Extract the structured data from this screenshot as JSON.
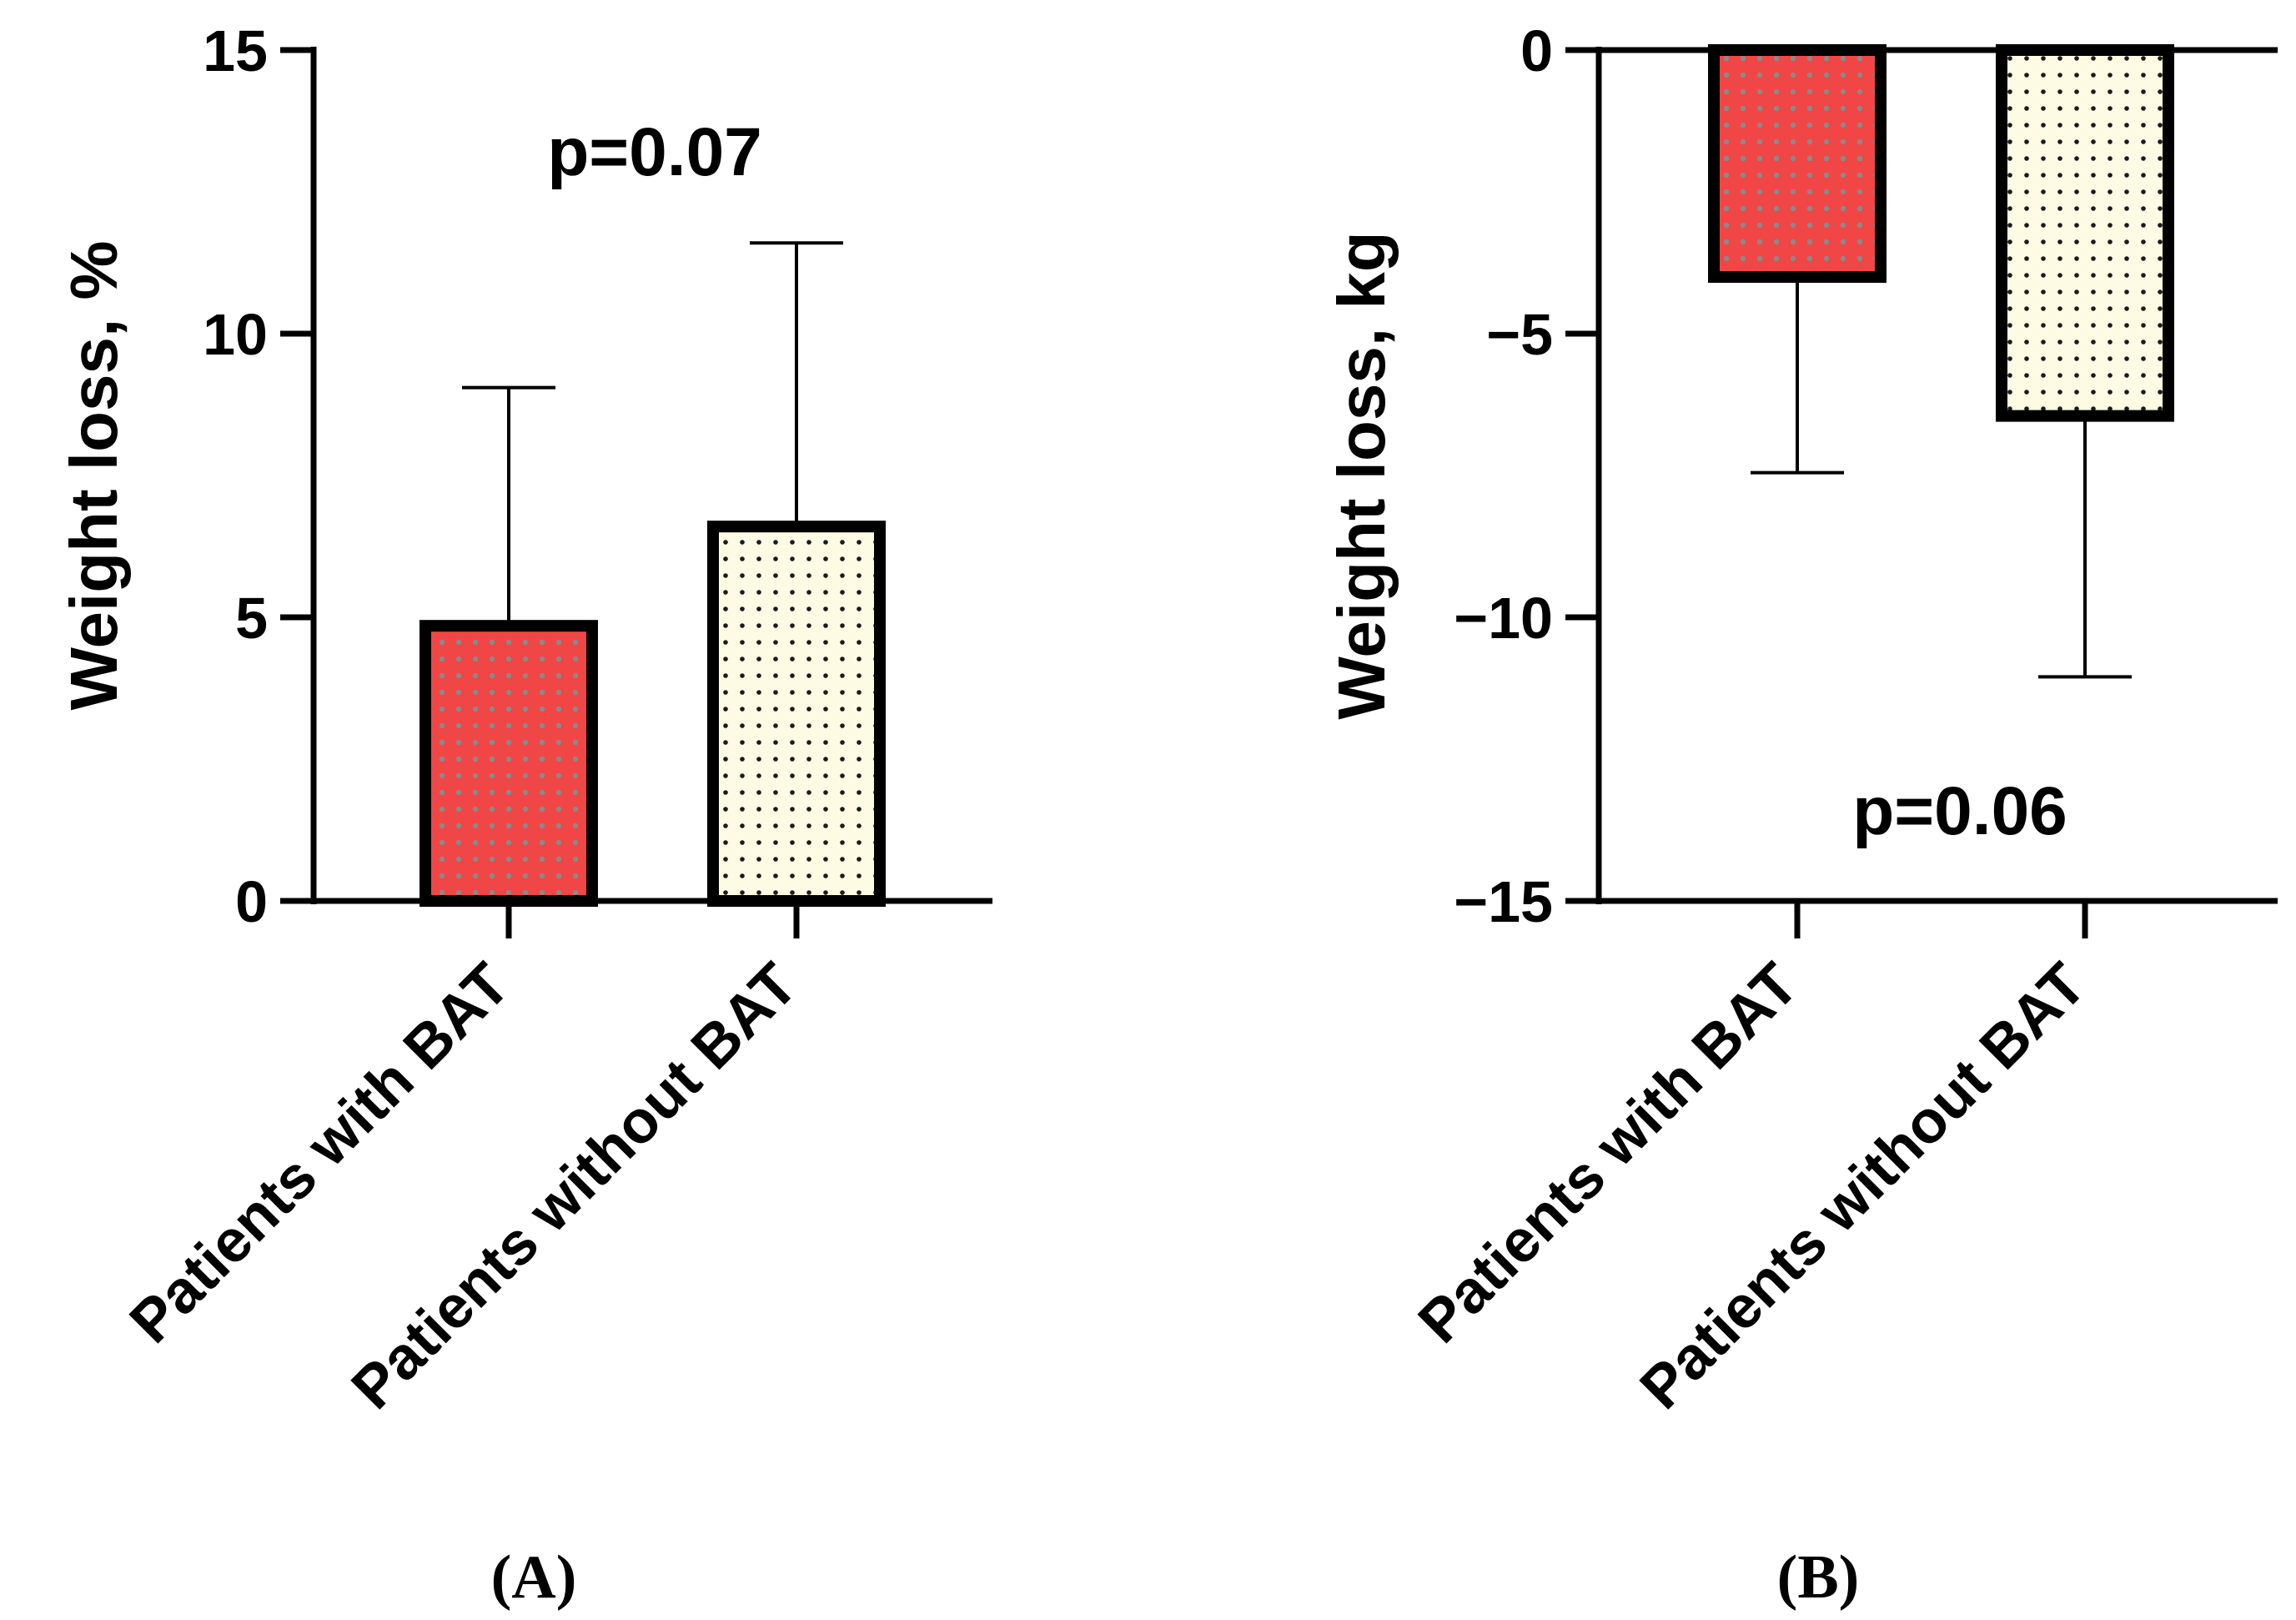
{
  "chart_data": [
    {
      "type": "bar",
      "panel_label": "(A)",
      "categories": [
        "Patients with BAT",
        "Patients without BAT"
      ],
      "series": [
        {
          "name": "Weight loss, %",
          "values": [
            4.85,
            6.6
          ],
          "error_upper": [
            4.2,
            5.0
          ],
          "colors": [
            "#f04646",
            "#fdfbe3"
          ],
          "dot_colors": [
            "#8a8a8a",
            "#1a1a1a"
          ]
        }
      ],
      "ylabel": "Weight loss, %",
      "xlabel": "",
      "ylim": [
        0,
        15
      ],
      "yticks": [
        0,
        5,
        10,
        15
      ],
      "ytick_labels": [
        "0",
        "5",
        "10",
        "15"
      ],
      "annotation": "p=0.07",
      "grid": false
    },
    {
      "type": "bar",
      "panel_label": "(B)",
      "categories": [
        "Patients with BAT",
        "Patients without BAT"
      ],
      "series": [
        {
          "name": "Weight loss, kg",
          "values": [
            -4.0,
            -6.45
          ],
          "error_lower": [
            3.45,
            4.6
          ],
          "colors": [
            "#f04646",
            "#fdfbe3"
          ],
          "dot_colors": [
            "#8a8a8a",
            "#1a1a1a"
          ]
        }
      ],
      "ylabel": "Weight loss, kg",
      "xlabel": "",
      "ylim": [
        -15,
        0
      ],
      "yticks": [
        0,
        -5,
        -10,
        -15
      ],
      "ytick_labels": [
        "0",
        "-5",
        "-10",
        "-15"
      ],
      "annotation": "p=0.06",
      "grid": false
    }
  ]
}
